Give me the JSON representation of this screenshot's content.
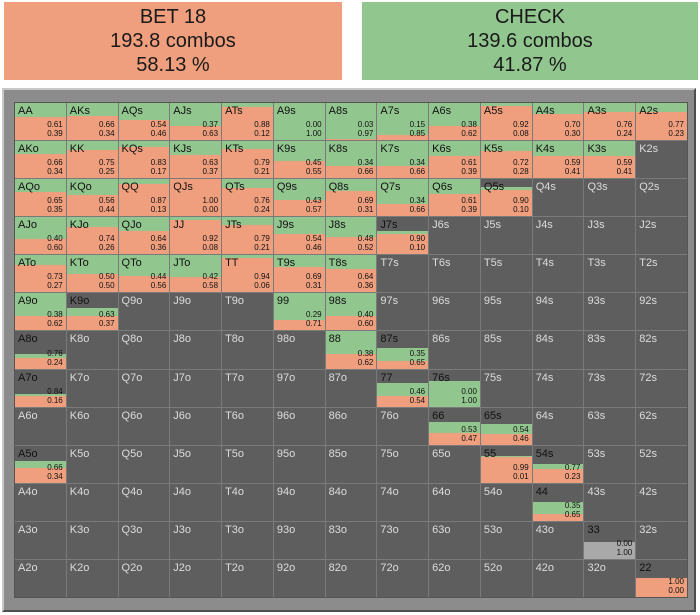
{
  "summary": {
    "bet": {
      "label": "BET 18",
      "combos": "193.8 combos",
      "pct": "58.13 %",
      "color": "#ef9f7e"
    },
    "check": {
      "label": "CHECK",
      "combos": "139.6 combos",
      "pct": "41.87 %",
      "color": "#92c68f"
    }
  },
  "colors": {
    "bet": "#ef9f7e",
    "check": "#92c68f",
    "empty": "#5e5e5e",
    "frame": "#8c8c8c"
  },
  "ranks": [
    "A",
    "K",
    "Q",
    "J",
    "T",
    "9",
    "8",
    "7",
    "6",
    "5",
    "4",
    "3",
    "2"
  ],
  "cells": [
    [
      [
        "AA",
        "0.61",
        "0.39"
      ],
      [
        "AKs",
        "0.66",
        "0.34"
      ],
      [
        "AQs",
        "0.54",
        "0.46"
      ],
      [
        "AJs",
        "0.37",
        "0.63"
      ],
      [
        "ATs",
        "0.88",
        "0.12"
      ],
      [
        "A9s",
        "0.00",
        "1.00"
      ],
      [
        "A8s",
        "0.03",
        "0.97"
      ],
      [
        "A7s",
        "0.15",
        "0.85"
      ],
      [
        "A6s",
        "0.38",
        "0.62"
      ],
      [
        "A5s",
        "0.92",
        "0.08"
      ],
      [
        "A4s",
        "0.70",
        "0.30"
      ],
      [
        "A3s",
        "0.76",
        "0.24"
      ],
      [
        "A2s",
        "0.77",
        "0.23"
      ]
    ],
    [
      [
        "AKo",
        "0.66",
        "0.34"
      ],
      [
        "KK",
        "0.75",
        "0.25"
      ],
      [
        "KQs",
        "0.83",
        "0.17"
      ],
      [
        "KJs",
        "0.63",
        "0.37"
      ],
      [
        "KTs",
        "0.79",
        "0.21"
      ],
      [
        "K9s",
        "0.45",
        "0.55"
      ],
      [
        "K8s",
        "0.34",
        "0.66"
      ],
      [
        "K7s",
        "0.34",
        "0.66"
      ],
      [
        "K6s",
        "0.61",
        "0.39"
      ],
      [
        "K5s",
        "0.72",
        "0.28"
      ],
      [
        "K4s",
        "0.59",
        "0.41"
      ],
      [
        "K3s",
        "0.59",
        "0.41"
      ],
      [
        "K2s"
      ]
    ],
    [
      [
        "AQo",
        "0.65",
        "0.35"
      ],
      [
        "KQo",
        "0.56",
        "0.44"
      ],
      [
        "QQ",
        "0.87",
        "0.13"
      ],
      [
        "QJs",
        "1.00",
        "0.00"
      ],
      [
        "QTs",
        "0.76",
        "0.24"
      ],
      [
        "Q9s",
        "0.43",
        "0.57"
      ],
      [
        "Q8s",
        "0.69",
        "0.31"
      ],
      [
        "Q7s",
        "0.34",
        "0.66"
      ],
      [
        "Q6s",
        "0.61",
        "0.39"
      ],
      [
        "Q5s",
        "0.90",
        "0.10"
      ],
      [
        "Q4s"
      ],
      [
        "Q3s"
      ],
      [
        "Q2s"
      ]
    ],
    [
      [
        "AJo",
        "0.40",
        "0.60"
      ],
      [
        "KJo",
        "0.74",
        "0.26"
      ],
      [
        "QJo",
        "0.64",
        "0.36"
      ],
      [
        "JJ",
        "0.92",
        "0.08"
      ],
      [
        "JTs",
        "0.79",
        "0.21"
      ],
      [
        "J9s",
        "0.54",
        "0.46"
      ],
      [
        "J8s",
        "0.48",
        "0.52"
      ],
      [
        "J7s",
        "0.90",
        "0.10"
      ],
      [
        "J6s"
      ],
      [
        "J5s"
      ],
      [
        "J4s"
      ],
      [
        "J3s"
      ],
      [
        "J2s"
      ]
    ],
    [
      [
        "ATo",
        "0.73",
        "0.27"
      ],
      [
        "KTo",
        "0.50",
        "0.50"
      ],
      [
        "QTo",
        "0.44",
        "0.56"
      ],
      [
        "JTo",
        "0.42",
        "0.58"
      ],
      [
        "TT",
        "0.94",
        "0.06"
      ],
      [
        "T9s",
        "0.69",
        "0.31"
      ],
      [
        "T8s",
        "0.64",
        "0.36"
      ],
      [
        "T7s"
      ],
      [
        "T6s"
      ],
      [
        "T5s"
      ],
      [
        "T4s"
      ],
      [
        "T3s"
      ],
      [
        "T2s"
      ]
    ],
    [
      [
        "A9o",
        "0.38",
        "0.62"
      ],
      [
        "K9o",
        "0.63",
        "0.37"
      ],
      [
        "Q9o"
      ],
      [
        "J9o"
      ],
      [
        "T9o"
      ],
      [
        "99",
        "0.29",
        "0.71"
      ],
      [
        "98s",
        "0.40",
        "0.60"
      ],
      [
        "97s"
      ],
      [
        "96s"
      ],
      [
        "95s"
      ],
      [
        "94s"
      ],
      [
        "93s"
      ],
      [
        "92s"
      ]
    ],
    [
      [
        "A8o",
        "0.76",
        "0.24"
      ],
      [
        "K8o"
      ],
      [
        "Q8o"
      ],
      [
        "J8o"
      ],
      [
        "T8o"
      ],
      [
        "98o"
      ],
      [
        "88",
        "0.38",
        "0.62"
      ],
      [
        "87s",
        "0.35",
        "0.65"
      ],
      [
        "86s"
      ],
      [
        "85s"
      ],
      [
        "84s"
      ],
      [
        "83s"
      ],
      [
        "82s"
      ]
    ],
    [
      [
        "A7o",
        "0.84",
        "0.16"
      ],
      [
        "K7o"
      ],
      [
        "Q7o"
      ],
      [
        "J7o"
      ],
      [
        "T7o"
      ],
      [
        "97o"
      ],
      [
        "87o"
      ],
      [
        "77",
        "0.46",
        "0.54"
      ],
      [
        "76s",
        "0.00",
        "1.00"
      ],
      [
        "75s"
      ],
      [
        "74s"
      ],
      [
        "73s"
      ],
      [
        "72s"
      ]
    ],
    [
      [
        "A6o"
      ],
      [
        "K6o"
      ],
      [
        "Q6o"
      ],
      [
        "J6o"
      ],
      [
        "T6o"
      ],
      [
        "96o"
      ],
      [
        "86o"
      ],
      [
        "76o"
      ],
      [
        "66",
        "0.53",
        "0.47"
      ],
      [
        "65s",
        "0.54",
        "0.46"
      ],
      [
        "64s"
      ],
      [
        "63s"
      ],
      [
        "62s"
      ]
    ],
    [
      [
        "A5o",
        "0.66",
        "0.34"
      ],
      [
        "K5o"
      ],
      [
        "Q5o"
      ],
      [
        "J5o"
      ],
      [
        "T5o"
      ],
      [
        "95o"
      ],
      [
        "85o"
      ],
      [
        "75o"
      ],
      [
        "65o"
      ],
      [
        "55",
        "0.99",
        "0.01"
      ],
      [
        "54s",
        "0.77",
        "0.23"
      ],
      [
        "53s"
      ],
      [
        "52s"
      ]
    ],
    [
      [
        "A4o"
      ],
      [
        "K4o"
      ],
      [
        "Q4o"
      ],
      [
        "J4o"
      ],
      [
        "T4o"
      ],
      [
        "94o"
      ],
      [
        "84o"
      ],
      [
        "74o"
      ],
      [
        "64o"
      ],
      [
        "54o"
      ],
      [
        "44",
        "0.35",
        "0.65"
      ],
      [
        "43s"
      ],
      [
        "42s"
      ]
    ],
    [
      [
        "A3o"
      ],
      [
        "K3o"
      ],
      [
        "Q3o"
      ],
      [
        "J3o"
      ],
      [
        "T3o"
      ],
      [
        "93o"
      ],
      [
        "83o"
      ],
      [
        "73o"
      ],
      [
        "63o"
      ],
      [
        "53o"
      ],
      [
        "43o"
      ],
      [
        "33",
        "0.00",
        "1.00"
      ],
      [
        "32s"
      ]
    ],
    [
      [
        "A2o"
      ],
      [
        "K2o"
      ],
      [
        "Q2o"
      ],
      [
        "J2o"
      ],
      [
        "T2o"
      ],
      [
        "92o"
      ],
      [
        "82o"
      ],
      [
        "72o"
      ],
      [
        "62o"
      ],
      [
        "52o"
      ],
      [
        "42o"
      ],
      [
        "32o"
      ],
      [
        "22",
        "1.00",
        "0.00"
      ]
    ]
  ],
  "partial_reach": {
    "J7s": 0.62,
    "Q5s": 0.78,
    "K9o": 0.6,
    "A8o": 0.38,
    "A7o": 0.35,
    "87s": 0.55,
    "76s": 0.7,
    "66": 0.62,
    "65s": 0.55,
    "55": 0.72,
    "54s": 0.5,
    "44": 0.5,
    "33": 0.45,
    "22": 0.52,
    "A5o": 0.6,
    "77": 0.65
  }
}
